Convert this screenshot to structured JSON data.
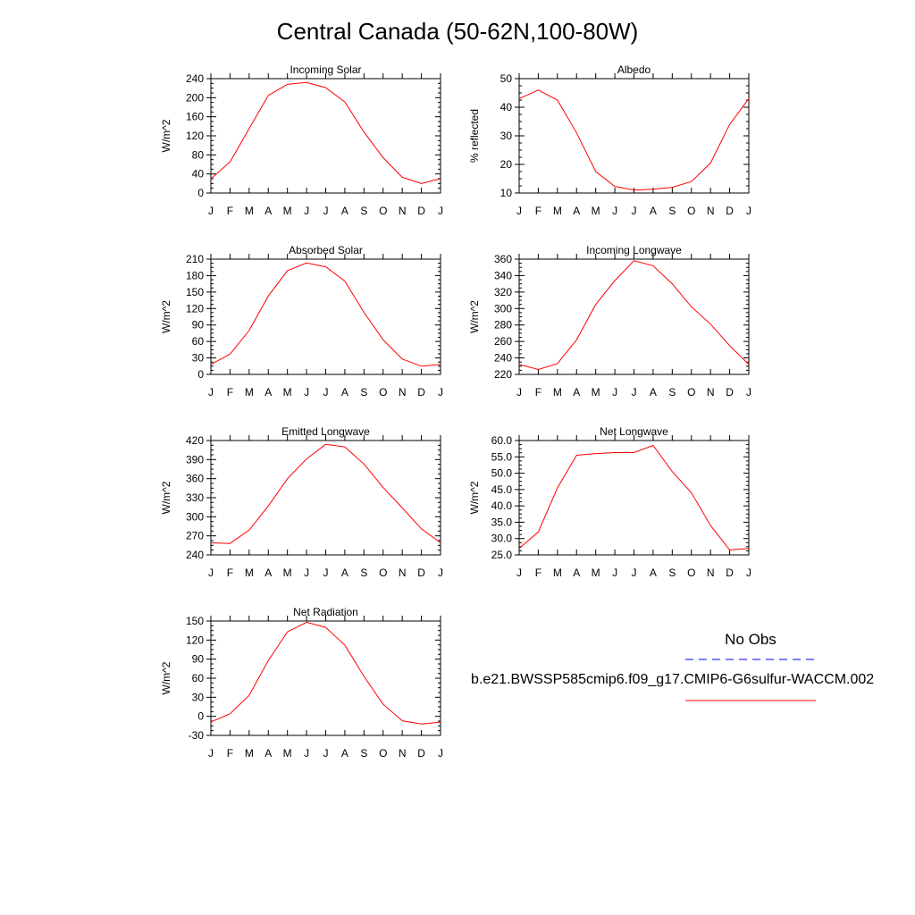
{
  "page": {
    "title": "Central Canada (50-62N,100-80W)"
  },
  "colors": {
    "model_line": "#ff0000",
    "obs_line": "#0000ff",
    "axis": "#000000"
  },
  "legend": {
    "obs_label": "No Obs",
    "model_label": "b.e21.BWSSP585cmip6.f09_g17.CMIP6-G6sulfur-WACCM.002"
  },
  "chart_data": [
    {
      "type": "line",
      "title": "Incoming Solar",
      "ylabel": "W/m^2",
      "categories": [
        "J",
        "F",
        "M",
        "A",
        "M",
        "J",
        "J",
        "A",
        "S",
        "O",
        "N",
        "D",
        "J"
      ],
      "ylim": [
        0,
        240
      ],
      "yticks": [
        "0",
        "40",
        "80",
        "120",
        "160",
        "200",
        "240"
      ],
      "series": [
        {
          "values": [
            30,
            65,
            135,
            205,
            228,
            232,
            221,
            191,
            128,
            74,
            33,
            20,
            30
          ]
        }
      ]
    },
    {
      "type": "line",
      "title": "Albedo",
      "ylabel": "% reflected",
      "categories": [
        "J",
        "F",
        "M",
        "A",
        "M",
        "J",
        "J",
        "A",
        "S",
        "O",
        "N",
        "D",
        "J"
      ],
      "ylim": [
        10,
        50
      ],
      "yticks": [
        "10",
        "20",
        "30",
        "40",
        "50"
      ],
      "series": [
        {
          "values": [
            43,
            46,
            42.5,
            31,
            17.5,
            12.3,
            11,
            11.3,
            12,
            14,
            20.5,
            34,
            43
          ]
        }
      ]
    },
    {
      "type": "line",
      "title": "Absorbed Solar",
      "ylabel": "W/m^2",
      "categories": [
        "J",
        "F",
        "M",
        "A",
        "M",
        "J",
        "J",
        "A",
        "S",
        "O",
        "N",
        "D",
        "J"
      ],
      "ylim": [
        0,
        210
      ],
      "yticks": [
        "0",
        "30",
        "60",
        "90",
        "120",
        "150",
        "180",
        "210"
      ],
      "series": [
        {
          "values": [
            18,
            37,
            80,
            143,
            189,
            203,
            196,
            170,
            113,
            63,
            28,
            15,
            18
          ]
        }
      ]
    },
    {
      "type": "line",
      "title": "Incoming Longwave",
      "ylabel": "W/m^2",
      "categories": [
        "J",
        "F",
        "M",
        "A",
        "M",
        "J",
        "J",
        "A",
        "S",
        "O",
        "N",
        "D",
        "J"
      ],
      "ylim": [
        220,
        360
      ],
      "yticks": [
        "220",
        "240",
        "260",
        "280",
        "300",
        "320",
        "340",
        "360"
      ],
      "series": [
        {
          "values": [
            232,
            226,
            233,
            262,
            305,
            334,
            358,
            352,
            330,
            302,
            281,
            255,
            232
          ]
        }
      ]
    },
    {
      "type": "line",
      "title": "Emitted Longwave",
      "ylabel": "W/m^2",
      "categories": [
        "J",
        "F",
        "M",
        "A",
        "M",
        "J",
        "J",
        "A",
        "S",
        "O",
        "N",
        "D",
        "J"
      ],
      "ylim": [
        240,
        420
      ],
      "yticks": [
        "240",
        "270",
        "300",
        "330",
        "360",
        "390",
        "420"
      ],
      "series": [
        {
          "values": [
            259,
            258,
            279,
            317,
            360,
            391,
            414,
            410,
            383,
            346,
            314,
            281,
            259
          ]
        }
      ]
    },
    {
      "type": "line",
      "title": "Net Longwave",
      "ylabel": "W/m^2",
      "categories": [
        "J",
        "F",
        "M",
        "A",
        "M",
        "J",
        "J",
        "A",
        "S",
        "O",
        "N",
        "D",
        "J"
      ],
      "ylim": [
        25,
        60
      ],
      "yticks": [
        "25.0",
        "30.0",
        "35.0",
        "40.0",
        "45.0",
        "50.0",
        "55.0",
        "60.0"
      ],
      "series": [
        {
          "values": [
            27,
            32,
            45.5,
            55.5,
            56,
            56.3,
            56.3,
            58.5,
            50.5,
            44,
            34,
            26.5,
            27
          ]
        }
      ]
    },
    {
      "type": "line",
      "title": "Net Radiation",
      "ylabel": "W/m^2",
      "categories": [
        "J",
        "F",
        "M",
        "A",
        "M",
        "J",
        "J",
        "A",
        "S",
        "O",
        "N",
        "D",
        "J"
      ],
      "ylim": [
        -30,
        150
      ],
      "yticks": [
        "-30",
        "0",
        "30",
        "60",
        "90",
        "120",
        "150"
      ],
      "series": [
        {
          "values": [
            -9,
            4,
            33,
            88,
            133,
            148,
            140,
            112,
            63,
            19,
            -7,
            -12,
            -9
          ]
        }
      ]
    }
  ]
}
